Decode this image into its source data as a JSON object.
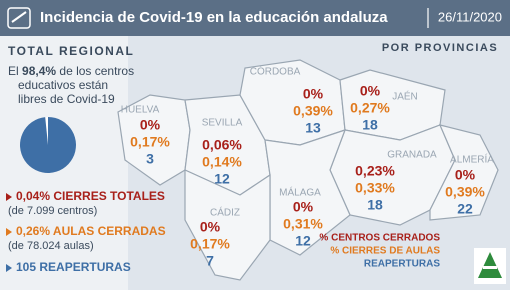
{
  "header": {
    "title": "Incidencia de Covid-19 en la educación andaluza",
    "date": "26/11/2020"
  },
  "total": {
    "heading": "TOTAL REGIONAL",
    "text_before": "El",
    "percent": {
      "value": 98.4,
      "label": "98,4%"
    },
    "text_after": [
      "de los centros",
      "educativos están",
      "libres de Covid-19"
    ],
    "stats": [
      {
        "main": "0,04% CIERRES TOTALES",
        "note": "(de 7.099 centros)"
      },
      {
        "main": "0,26% AULAS CERRADAS",
        "note": "(de 78.024 aulas)"
      },
      {
        "main": "105 REAPERTURAS"
      }
    ]
  },
  "map": {
    "heading": "POR PROVINCIAS",
    "provinces": [
      {
        "name": "CÓRDOBA",
        "closed_centers": "0%",
        "closed_classrooms": "0,39%",
        "reopenings": "13"
      },
      {
        "name": "JAÉN",
        "closed_centers": "0%",
        "closed_classrooms": "0,27%",
        "reopenings": "18"
      },
      {
        "name": "HUELVA",
        "closed_centers": "0%",
        "closed_classrooms": "0,17%",
        "reopenings": "3"
      },
      {
        "name": "SEVILLA",
        "closed_centers": "0,06%",
        "closed_classrooms": "0,14%",
        "reopenings": "12"
      },
      {
        "name": "GRANADA",
        "closed_centers": "0,23%",
        "closed_classrooms": "0,33%",
        "reopenings": "18"
      },
      {
        "name": "ALMERÍA",
        "closed_centers": "0%",
        "closed_classrooms": "0,39%",
        "reopenings": "22"
      },
      {
        "name": "MÁLAGA",
        "closed_centers": "0%",
        "closed_classrooms": "0,31%",
        "reopenings": "12"
      },
      {
        "name": "CÁDIZ",
        "closed_centers": "0%",
        "closed_classrooms": "0,17%",
        "reopenings": "7"
      }
    ],
    "legend": [
      "% CENTROS CERRADOS",
      "% CIERRES DE AULAS",
      "REAPERTURAS"
    ]
  }
}
